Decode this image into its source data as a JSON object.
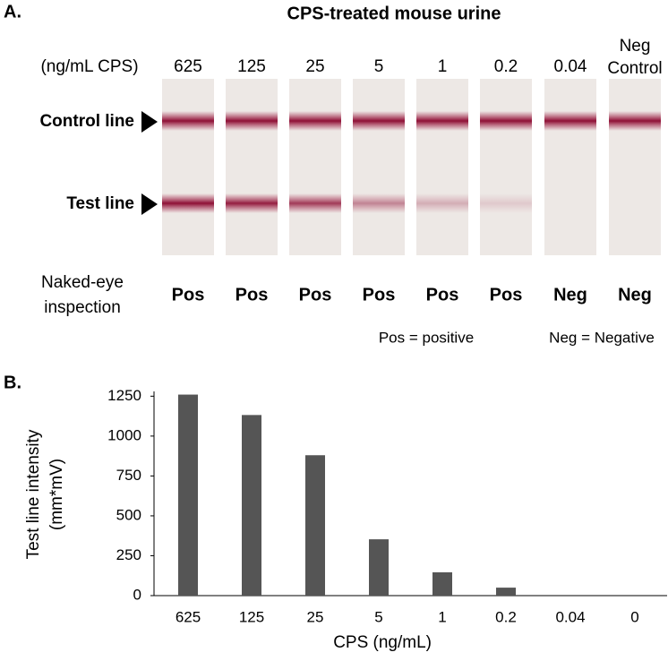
{
  "panel_a": {
    "label": "A.",
    "title": "CPS-treated mouse urine",
    "concentration_header": "(ng/mL CPS)",
    "strip_labels": [
      [
        "625"
      ],
      [
        "125"
      ],
      [
        "25"
      ],
      [
        "5"
      ],
      [
        "1"
      ],
      [
        "0.2"
      ],
      [
        "0.04"
      ],
      [
        "Neg",
        "Control"
      ]
    ],
    "control_line_label": "Control line",
    "test_line_label": "Test line",
    "inspection_label": [
      "Naked-eye",
      "inspection"
    ],
    "results": [
      "Pos",
      "Pos",
      "Pos",
      "Pos",
      "Pos",
      "Pos",
      "Neg",
      "Neg"
    ],
    "legend": [
      "Pos = positive",
      "Neg = Negative"
    ]
  },
  "panel_b_label": "B.",
  "chart_data": {
    "type": "bar",
    "y_label": [
      "Test line intensity",
      "(mm*mV)"
    ],
    "x_label": "CPS (ng/mL)",
    "categories": [
      "625",
      "125",
      "25",
      "5",
      "1",
      "0.2",
      "0.04",
      "0"
    ],
    "values": [
      1260,
      1132,
      880,
      353,
      146,
      50,
      0,
      0
    ],
    "color": "#555555",
    "ylim": [
      0,
      1280
    ],
    "yticks": [
      0,
      250,
      500,
      750,
      1000,
      1250
    ],
    "grid": false
  }
}
